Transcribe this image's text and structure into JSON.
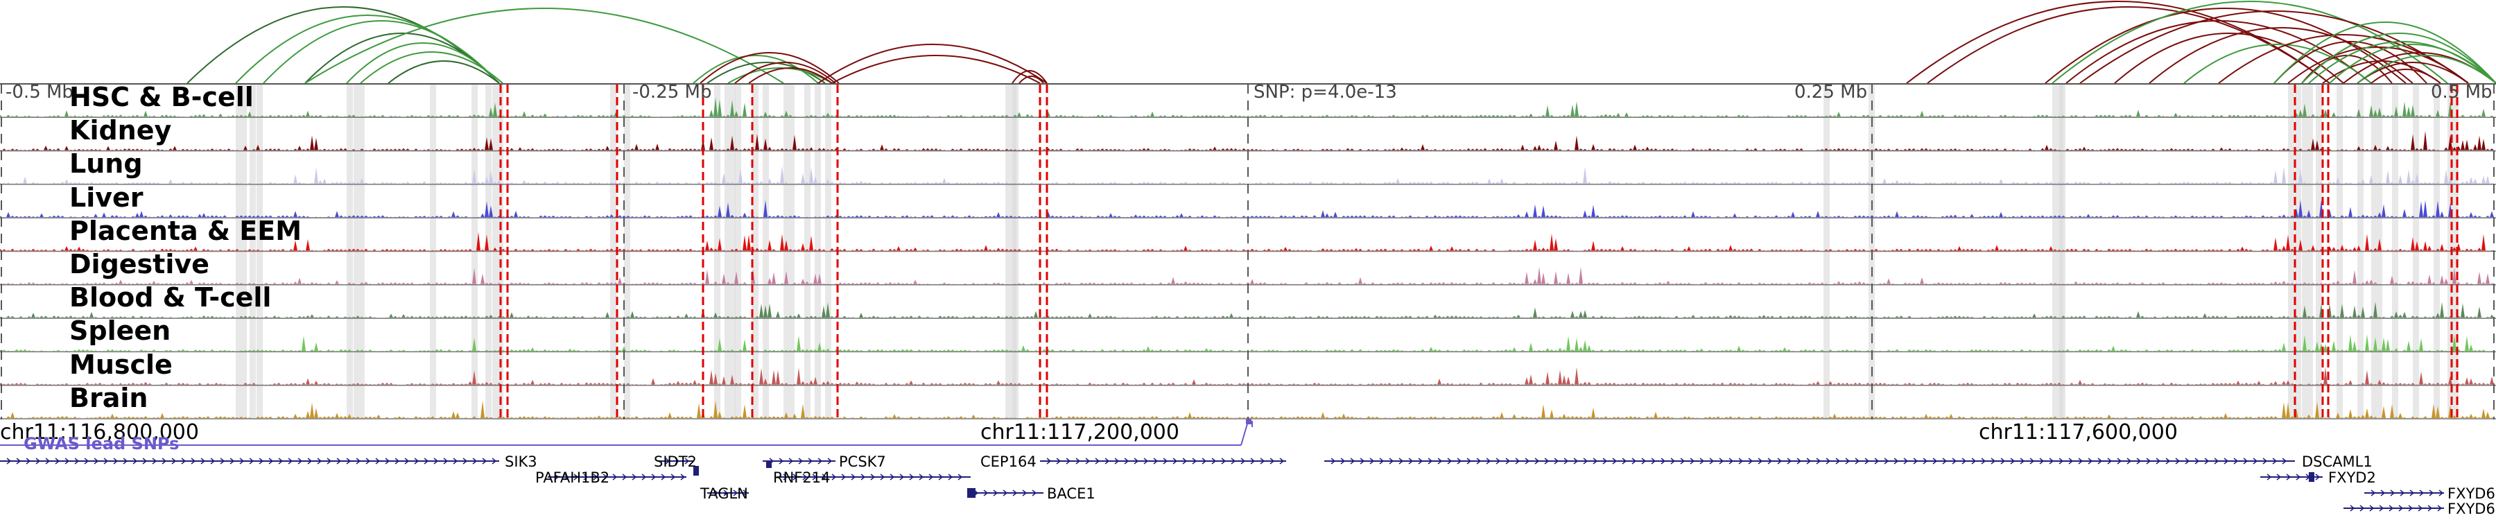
{
  "colors": {
    "arc_green": "#3f9a3f",
    "arc_darkred": "#7a0d0d",
    "highlight": "#d9d9d9",
    "marker_red": "#e00000",
    "gene_navy": "#1f1f7a",
    "gwas_purple": "#6a5acd",
    "axis_gray": "#555555"
  },
  "ruler": {
    "labels": [
      "-0.5 Mb",
      "-0.25 Mb",
      "SNP: p=4.0e-13",
      "0.25 Mb",
      "0.5 Mb"
    ]
  },
  "tracks": [
    {
      "label": "HSC & B-cell",
      "color": "#5aa15a"
    },
    {
      "label": "Kidney",
      "color": "#7b0a0a"
    },
    {
      "label": "Lung",
      "color": "#c9c9e8"
    },
    {
      "label": "Liver",
      "color": "#4a4ad6"
    },
    {
      "label": "Placenta & EEM",
      "color": "#e01010"
    },
    {
      "label": "Digestive",
      "color": "#c57fa0"
    },
    {
      "label": "Blood & T-cell",
      "color": "#5a8a5a"
    },
    {
      "label": "Spleen",
      "color": "#6ec85a"
    },
    {
      "label": "Muscle",
      "color": "#c05a5a"
    },
    {
      "label": "Brain",
      "color": "#c8952a"
    }
  ],
  "coordinates": [
    "chr11:116,800,000",
    "chr11:117,200,000",
    "chr11:117,600,000"
  ],
  "gwas_label": "GWAS lead SNPs",
  "genes": [
    "SIK3",
    "PAFAH1B2",
    "SIDT2",
    "TAGLN",
    "PCSK7",
    "RNF214",
    "CEP164",
    "BACE1",
    "DSCAML1",
    "FXYD2",
    "FXYD6",
    "FXYD6"
  ]
}
